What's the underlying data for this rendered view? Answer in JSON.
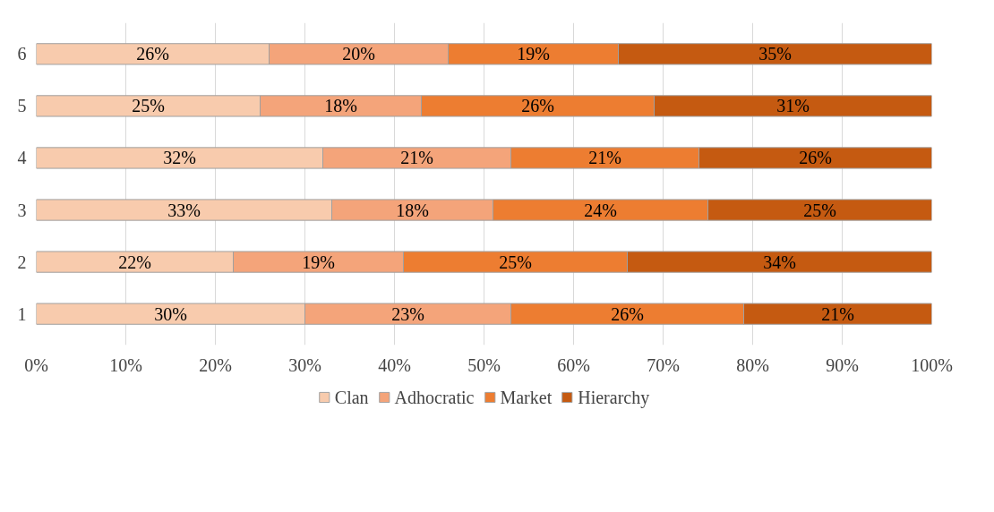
{
  "chart_data": {
    "type": "bar",
    "orientation": "horizontal",
    "stacked": true,
    "categories": [
      "6",
      "5",
      "4",
      "3",
      "2",
      "1"
    ],
    "series": [
      {
        "name": "Clan",
        "color": "#f8cbad",
        "values": [
          26,
          25,
          32,
          33,
          22,
          30
        ],
        "value_labels": [
          "26%",
          "25%",
          "32%",
          "33%",
          "22%",
          "30%"
        ]
      },
      {
        "name": "Adhocratic",
        "color": "#f4a47a",
        "values": [
          20,
          18,
          21,
          18,
          19,
          23
        ],
        "value_labels": [
          "20%",
          "18%",
          "21%",
          "18%",
          "19%",
          "23%"
        ]
      },
      {
        "name": "Market",
        "color": "#ed7d31",
        "values": [
          19,
          26,
          21,
          24,
          25,
          26
        ],
        "value_labels": [
          "19%",
          "26%",
          "21%",
          "24%",
          "25%",
          "26%"
        ]
      },
      {
        "name": "Hierarchy",
        "color": "#c55a11",
        "values": [
          35,
          31,
          26,
          25,
          34,
          21
        ],
        "value_labels": [
          "35%",
          "31%",
          "26%",
          "25%",
          "34%",
          "21%"
        ]
      }
    ],
    "xlim": [
      0,
      100
    ],
    "xticks": [
      {
        "value": 0,
        "label": "0%"
      },
      {
        "value": 10,
        "label": "10%"
      },
      {
        "value": 20,
        "label": "20%"
      },
      {
        "value": 30,
        "label": "30%"
      },
      {
        "value": 40,
        "label": "40%"
      },
      {
        "value": 50,
        "label": "50%"
      },
      {
        "value": 60,
        "label": "60%"
      },
      {
        "value": 70,
        "label": "70%"
      },
      {
        "value": 80,
        "label": "80%"
      },
      {
        "value": 90,
        "label": "90%"
      },
      {
        "value": 100,
        "label": "100%"
      }
    ],
    "grid": "x",
    "legend": "bottom"
  }
}
